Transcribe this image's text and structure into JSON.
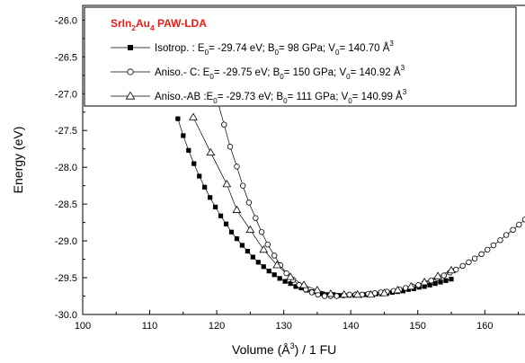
{
  "chart_data": {
    "type": "scatter",
    "xlabel_main": "Volume (Å",
    "xlabel_sup": "3",
    "xlabel_tail": ") / 1 FU",
    "ylabel": "Energy (eV)",
    "xlim": [
      100,
      166
    ],
    "ylim": [
      -30.0,
      -25.8
    ],
    "x_ticks": [
      100,
      110,
      120,
      130,
      140,
      150,
      160
    ],
    "y_ticks": [
      -30.0,
      -29.5,
      -29.0,
      -28.5,
      -28.0,
      -27.5,
      -27.0,
      -26.5,
      -26.0
    ],
    "x_tick_labels": [
      "100",
      "110",
      "120",
      "130",
      "140",
      "150",
      "160"
    ],
    "y_tick_labels": [
      "-30.0",
      "-29.5",
      "-29.0",
      "-28.5",
      "-28.0",
      "-27.5",
      "-27.0",
      "-26.5",
      "-26.0"
    ],
    "grid": false,
    "legend_position": "top-left",
    "legend_title_parts": [
      {
        "t": "SrIn",
        "s": "n"
      },
      {
        "t": "2",
        "s": "sub"
      },
      {
        "t": "Au",
        "s": "n"
      },
      {
        "t": "4",
        "s": "sub"
      },
      {
        "t": " PAW-LDA",
        "s": "n"
      }
    ],
    "series": [
      {
        "marker": "filled-square",
        "legend_parts": [
          {
            "t": "Isotrop. : E",
            "s": "n"
          },
          {
            "t": "0",
            "s": "sub"
          },
          {
            "t": "= -29.74 eV; B",
            "s": "n"
          },
          {
            "t": "0",
            "s": "sub"
          },
          {
            "t": "= 98 GPa; V",
            "s": "n"
          },
          {
            "t": "0",
            "s": "sub"
          },
          {
            "t": "= 140.70 Å",
            "s": "n"
          },
          {
            "t": "3",
            "s": "sup"
          }
        ],
        "E0": -29.74,
        "B0_GPa": 98,
        "V0": 140.7,
        "x": [
          114.2,
          115.0,
          115.8,
          116.6,
          117.4,
          118.2,
          119.0,
          119.8,
          120.6,
          121.4,
          122.2,
          123.0,
          123.8,
          124.6,
          125.4,
          126.2,
          127.0,
          127.8,
          128.6,
          129.4,
          130.2,
          131.0,
          131.8,
          132.6,
          133.4,
          134.2,
          135.0,
          135.8,
          136.6,
          137.4,
          138.2,
          139.0,
          139.8,
          140.6,
          141.4,
          142.2,
          143.0,
          143.8,
          144.6,
          145.4,
          146.2,
          147.0,
          147.8,
          148.6,
          149.4,
          150.2,
          151.0,
          151.8,
          152.6,
          153.4,
          154.2,
          155.0
        ],
        "y": [
          -27.34,
          -27.57,
          -27.77,
          -27.95,
          -28.12,
          -28.27,
          -28.41,
          -28.54,
          -28.66,
          -28.77,
          -28.88,
          -28.97,
          -29.06,
          -29.14,
          -29.22,
          -29.29,
          -29.35,
          -29.41,
          -29.46,
          -29.51,
          -29.55,
          -29.58,
          -29.62,
          -29.64,
          -29.67,
          -29.69,
          -29.7,
          -29.72,
          -29.73,
          -29.73,
          -29.74,
          -29.74,
          -29.74,
          -29.74,
          -29.74,
          -29.73,
          -29.73,
          -29.72,
          -29.72,
          -29.71,
          -29.7,
          -29.69,
          -29.68,
          -29.66,
          -29.65,
          -29.63,
          -29.62,
          -29.6,
          -29.58,
          -29.56,
          -29.54,
          -29.52
        ]
      },
      {
        "marker": "open-circle",
        "legend_parts": [
          {
            "t": "Aniso.- C: E",
            "s": "n"
          },
          {
            "t": "0",
            "s": "sub"
          },
          {
            "t": "= -29.75 eV; B",
            "s": "n"
          },
          {
            "t": "0",
            "s": "sub"
          },
          {
            "t": "= 150 GPa; V",
            "s": "n"
          },
          {
            "t": "0",
            "s": "sub"
          },
          {
            "t": "= 140.92 Å",
            "s": "n"
          },
          {
            "t": "3",
            "s": "sup"
          }
        ],
        "E0": -29.75,
        "B0_GPa": 150,
        "V0": 140.92,
        "x": [
          120.1,
          121.1,
          122.0,
          123.0,
          123.9,
          124.8,
          125.8,
          126.7,
          127.6,
          128.6,
          129.5,
          130.4,
          131.4,
          132.3,
          133.3,
          134.2,
          135.1,
          136.1,
          137.0,
          137.9,
          138.9,
          139.8,
          140.7,
          141.7,
          142.6,
          143.6,
          144.5,
          145.4,
          146.4,
          147.3,
          148.2,
          149.2,
          150.1,
          151.0,
          152.0,
          152.9,
          153.9,
          154.8,
          155.7,
          156.7,
          157.6,
          158.5,
          159.5,
          160.4,
          161.3,
          162.3,
          163.2,
          164.2,
          165.1,
          166.0
        ],
        "y": [
          -27.09,
          -27.42,
          -27.72,
          -27.99,
          -28.25,
          -28.48,
          -28.69,
          -28.88,
          -29.05,
          -29.2,
          -29.33,
          -29.44,
          -29.53,
          -29.6,
          -29.66,
          -29.7,
          -29.73,
          -29.75,
          -29.75,
          -29.75,
          -29.74,
          -29.73,
          -29.73,
          -29.73,
          -29.72,
          -29.71,
          -29.7,
          -29.69,
          -29.68,
          -29.66,
          -29.64,
          -29.62,
          -29.6,
          -29.57,
          -29.54,
          -29.51,
          -29.47,
          -29.43,
          -29.39,
          -29.34,
          -29.29,
          -29.24,
          -29.18,
          -29.12,
          -29.06,
          -28.99,
          -28.92,
          -28.85,
          -28.78,
          -28.71
        ]
      },
      {
        "marker": "open-triangle",
        "legend_parts": [
          {
            "t": "Aniso.-AB :E",
            "s": "n"
          },
          {
            "t": "0",
            "s": "sub"
          },
          {
            "t": "= -29.73 eV; B",
            "s": "n"
          },
          {
            "t": "0",
            "s": "sub"
          },
          {
            "t": "= 111 GPa; V",
            "s": "n"
          },
          {
            "t": "0",
            "s": "sub"
          },
          {
            "t": "= 140.99 Å",
            "s": "n"
          },
          {
            "t": "3",
            "s": "sup"
          }
        ],
        "E0": -29.73,
        "B0_GPa": 111,
        "V0": 140.99,
        "x": [
          116.5,
          119.1,
          121.5,
          123.0,
          125.0,
          127.0,
          129.0,
          131.0,
          133.0,
          135.0,
          137.0,
          139.0,
          141.0,
          143.0,
          145.0,
          147.0,
          149.0,
          151.0,
          153.0,
          155.0
        ],
        "y": [
          -27.32,
          -27.8,
          -28.23,
          -28.58,
          -28.85,
          -29.12,
          -29.33,
          -29.49,
          -29.6,
          -29.67,
          -29.72,
          -29.73,
          -29.73,
          -29.73,
          -29.71,
          -29.67,
          -29.62,
          -29.56,
          -29.48,
          -29.4
        ]
      }
    ]
  }
}
